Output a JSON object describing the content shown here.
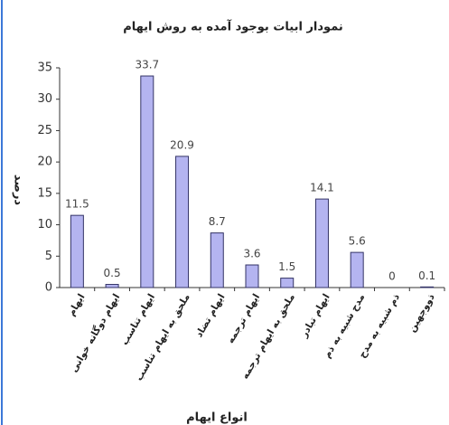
{
  "chart_data": {
    "type": "bar",
    "title": "نمودار ابیات بوجود آمده به روش ایهام",
    "y_label": "درصد",
    "x_label": "انواع ایهام",
    "categories": [
      "ایهام",
      "ایهام دوگانه خوانی",
      "ایهام تناسب",
      "ملحق به ایهام تناسب",
      "ایهام تضاد",
      "ایهام ترجمه",
      "ملحق به ایهام ترجمه",
      "ایهام تبادر",
      "مدح شبیه به ذم",
      "ذم شبیه به مدح",
      "ذووجهین"
    ],
    "values": [
      11.5,
      0.5,
      33.7,
      20.9,
      8.7,
      3.6,
      1.5,
      14.1,
      5.6,
      0,
      0.1
    ],
    "color": "#b4b4f0",
    "ylim": [
      0,
      35
    ],
    "yticks": [
      0,
      5,
      10,
      15,
      20,
      25,
      30,
      35
    ]
  }
}
